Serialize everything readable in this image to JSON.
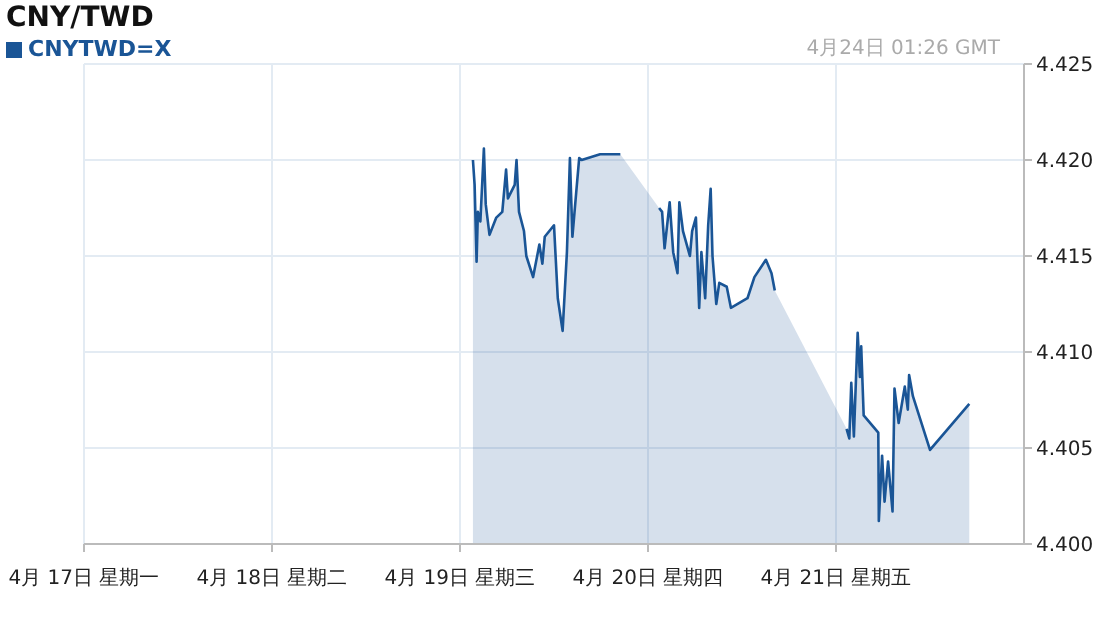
{
  "chart_data": {
    "type": "area",
    "title": "CNY/TWD",
    "annotations": [
      "4月24日 01:26 GMT"
    ],
    "xlim": [
      "--04-17",
      "--04-22"
    ],
    "xticks": [
      {
        "value": "--04-17",
        "label": "4月 17日 星期一"
      },
      {
        "value": "--04-18",
        "label": "4月 18日 星期二"
      },
      {
        "value": "--04-19",
        "label": "4月 19日 星期三"
      },
      {
        "value": "--04-20",
        "label": "4月 20日 星期四"
      },
      {
        "value": "--04-21",
        "label": "4月 21日 星期五"
      }
    ],
    "ylim": [
      4.4,
      4.425
    ],
    "yticks": [
      {
        "value": 4.4,
        "label": "4.400"
      },
      {
        "value": 4.405,
        "label": "4.405"
      },
      {
        "value": 4.41,
        "label": "4.410"
      },
      {
        "value": 4.415,
        "label": "4.415"
      },
      {
        "value": 4.42,
        "label": "4.420"
      },
      {
        "value": 4.425,
        "label": "4.425"
      }
    ],
    "grid": true,
    "legend": "top left",
    "series": [
      {
        "name": "CNYTWD=X",
        "color": "#1a5596",
        "x": [
          "--04-19T01:39",
          "--04-19T01:52",
          "--04-19T02:07",
          "--04-19T02:17",
          "--04-19T02:36",
          "--04-19T03:03",
          "--04-19T03:17",
          "--04-19T03:46",
          "--04-19T04:38",
          "--04-19T05:24",
          "--04-19T05:53",
          "--04-19T06:07",
          "--04-19T06:59",
          "--04-19T07:13",
          "--04-19T07:32",
          "--04-19T08:10",
          "--04-19T08:28",
          "--04-19T09:20",
          "--04-19T10:08",
          "--04-19T10:31",
          "--04-19T10:49",
          "--04-19T12:00",
          "--04-19T12:29",
          "--04-19T13:06",
          "--04-19T13:39",
          "--04-19T14:02",
          "--04-19T14:21",
          "--04-19T14:50",
          "--04-19T15:13",
          "--04-19T15:32",
          "--04-19T17:53",
          "--04-19T20:28",
          "--04-19T22:48",
          "--04-20T01:25",
          "--04-20T01:48",
          "--04-20T02:07",
          "--04-20T02:46",
          "--04-20T03:13",
          "--04-20T03:46",
          "--04-20T04:00",
          "--04-20T04:28",
          "--04-20T05:21",
          "--04-20T05:38",
          "--04-20T06:07",
          "--04-20T06:32",
          "--04-20T06:49",
          "--04-20T07:18",
          "--04-20T07:41",
          "--04-20T08:00",
          "--04-20T08:14",
          "--04-20T08:43",
          "--04-20T09:06",
          "--04-20T10:03",
          "--04-20T10:35",
          "--04-20T12:42",
          "--04-20T13:35",
          "--04-20T15:03",
          "--04-20T15:46",
          "--04-20T16:11",
          "--04-20T20:24",
          "--04-21T01:21",
          "--04-21T01:42",
          "--04-21T01:57",
          "--04-21T02:17",
          "--04-21T02:46",
          "--04-21T03:03",
          "--04-21T03:13",
          "--04-21T03:32",
          "--04-21T05:24",
          "--04-21T05:28",
          "--04-21T05:53",
          "--04-21T06:12",
          "--04-21T06:39",
          "--04-21T07:13",
          "--04-21T07:28",
          "--04-21T08:00",
          "--04-21T08:47",
          "--04-21T09:10",
          "--04-21T09:20",
          "--04-21T09:49",
          "--04-21T12:00",
          "--04-21T17:01"
        ],
        "values": [
          4.42,
          4.4187,
          4.4147,
          4.4173,
          4.4168,
          4.4206,
          4.4177,
          4.4161,
          4.417,
          4.4173,
          4.4195,
          4.418,
          4.4187,
          4.42,
          4.4173,
          4.4163,
          4.415,
          4.4139,
          4.4156,
          4.4146,
          4.416,
          4.4166,
          4.4128,
          4.4111,
          4.4152,
          4.4201,
          4.416,
          4.4183,
          4.4201,
          4.42,
          4.4203,
          4.4203,
          null,
          4.4175,
          4.4173,
          4.4154,
          4.4178,
          4.4152,
          4.4141,
          4.4178,
          4.4163,
          4.415,
          4.4163,
          4.417,
          4.4123,
          4.4152,
          4.4128,
          4.4166,
          4.4185,
          4.415,
          4.4125,
          4.4136,
          4.4134,
          4.4123,
          4.4128,
          4.4139,
          4.4148,
          4.4141,
          4.4132,
          null,
          4.406,
          4.4055,
          4.4084,
          4.4056,
          4.411,
          4.4087,
          4.4103,
          4.4067,
          4.4058,
          4.4012,
          4.4046,
          4.4022,
          4.4043,
          4.4017,
          4.4081,
          4.4063,
          4.4082,
          4.407,
          4.4088,
          4.4077,
          4.4049,
          4.4073
        ]
      }
    ]
  }
}
